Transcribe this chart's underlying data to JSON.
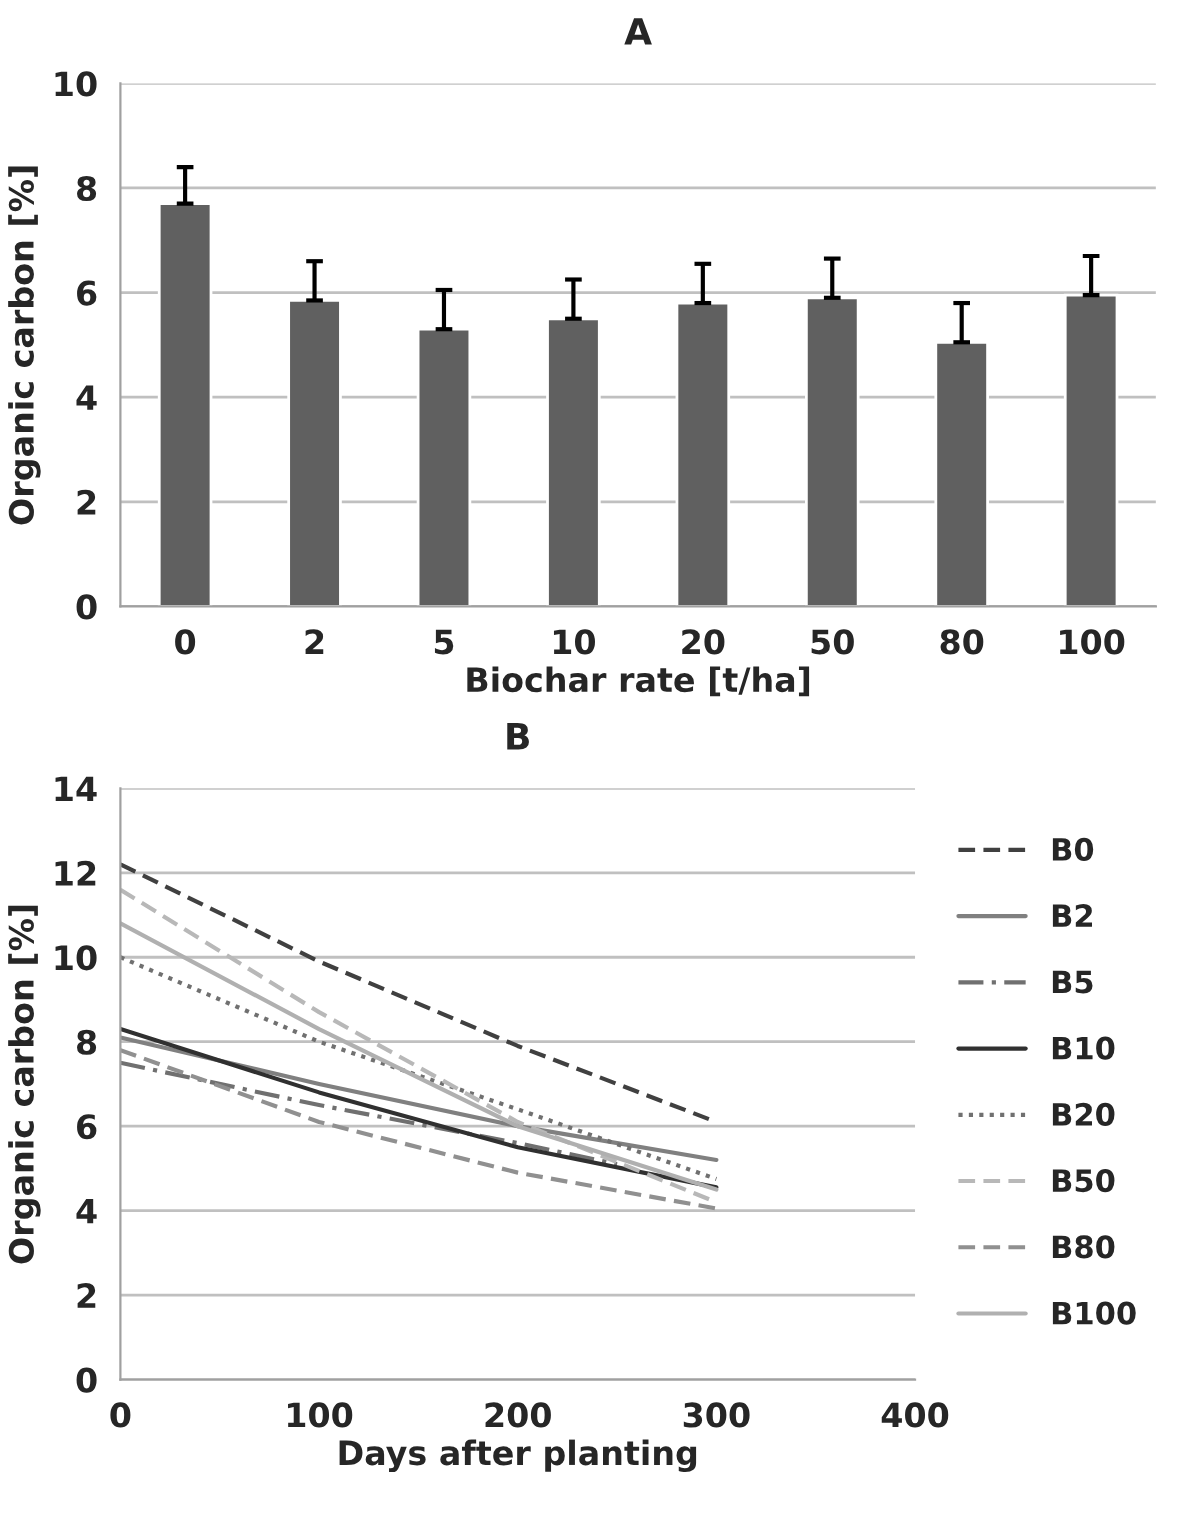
{
  "chart_data": [
    {
      "type": "bar",
      "title": "A",
      "xlabel": "Biochar rate [t/ha]",
      "ylabel": "Organic carbon [%]",
      "categories": [
        "0",
        "2",
        "5",
        "10",
        "20",
        "50",
        "80",
        "100"
      ],
      "values": [
        7.7,
        5.85,
        5.3,
        5.5,
        5.8,
        5.9,
        5.05,
        5.95
      ],
      "errors": [
        [
          7.7,
          8.4
        ],
        [
          5.85,
          6.6
        ],
        [
          5.3,
          6.05
        ],
        [
          5.5,
          6.25
        ],
        [
          5.8,
          6.55
        ],
        [
          5.9,
          6.65
        ],
        [
          5.05,
          5.8
        ],
        [
          5.95,
          6.7
        ]
      ],
      "color": "#606060",
      "ylim": [
        0,
        10
      ],
      "yticks": [
        0,
        2,
        4,
        6,
        8,
        10
      ],
      "grid": "y"
    },
    {
      "type": "line",
      "title": "B",
      "xlabel": "Days after planting",
      "ylabel": "Organic carbon [%]",
      "xlim": [
        0,
        400
      ],
      "xticks": [
        0,
        100,
        200,
        300,
        400
      ],
      "ylim": [
        0,
        14
      ],
      "yticks": [
        0,
        2,
        4,
        6,
        8,
        10,
        12,
        14
      ],
      "grid": "y",
      "legend": "right",
      "series": [
        {
          "name": "B0",
          "color": "#404040",
          "line_style": "dashed",
          "x": [
            0,
            100,
            200,
            300
          ],
          "values": [
            12.2,
            9.9,
            7.9,
            6.1
          ]
        },
        {
          "name": "B2",
          "color": "#808080",
          "line_style": "solid",
          "x": [
            0,
            100,
            200,
            300
          ],
          "values": [
            8.1,
            7.0,
            6.0,
            5.2
          ]
        },
        {
          "name": "B5",
          "color": "#707070",
          "line_style": "dashdot",
          "x": [
            0,
            100,
            200,
            250
          ],
          "values": [
            7.5,
            6.5,
            5.6,
            5.1
          ]
        },
        {
          "name": "B10",
          "color": "#303030",
          "line_style": "solid",
          "x": [
            0,
            100,
            200,
            300
          ],
          "values": [
            8.3,
            6.8,
            5.5,
            4.55
          ]
        },
        {
          "name": "B20",
          "color": "#707070",
          "line_style": "dotted",
          "x": [
            0,
            100,
            200,
            300
          ],
          "values": [
            10.0,
            8.0,
            6.4,
            4.75
          ]
        },
        {
          "name": "B50",
          "color": "#b8b8b8",
          "line_style": "dashed",
          "x": [
            0,
            100,
            200,
            300
          ],
          "values": [
            11.6,
            8.7,
            6.1,
            4.2
          ]
        },
        {
          "name": "B80",
          "color": "#909090",
          "line_style": "dashed",
          "x": [
            0,
            100,
            200,
            300
          ],
          "values": [
            7.8,
            6.1,
            4.9,
            4.05
          ]
        },
        {
          "name": "B100",
          "color": "#b0b0b0",
          "line_style": "solid",
          "x": [
            0,
            100,
            200,
            300
          ],
          "values": [
            10.8,
            8.3,
            6.0,
            4.5
          ]
        }
      ]
    }
  ]
}
